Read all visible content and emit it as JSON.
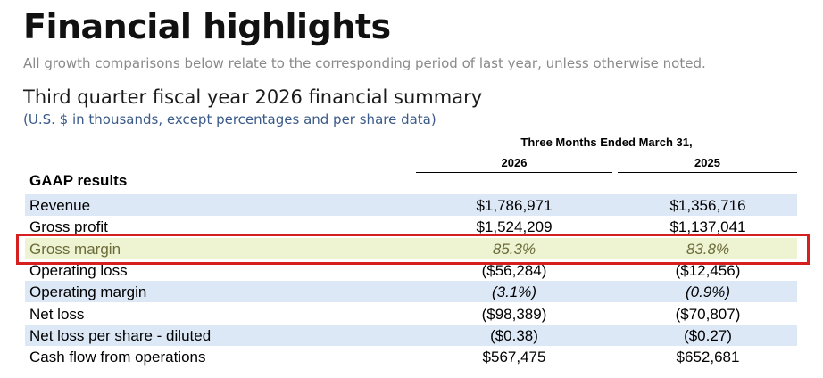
{
  "header": {
    "title": "Financial highlights",
    "subtitle": "All growth comparisons below relate to the corresponding period of last year, unless otherwise noted."
  },
  "section": {
    "title": "Third quarter fiscal year 2026 financial summary",
    "note": "(U.S. $ in thousands, except percentages and per share data)"
  },
  "table": {
    "period_header": "Three Months Ended March 31,",
    "columns": [
      "2026",
      "2025"
    ],
    "group_label": "GAAP results",
    "rows": [
      [
        "Revenue",
        "$1,786,971",
        "$1,356,716"
      ],
      [
        "Gross profit",
        "$1,524,209",
        "$1,137,041"
      ],
      [
        "Gross margin",
        "85.3%",
        "83.8%"
      ],
      [
        "Operating loss",
        "($56,284)",
        "($12,456)"
      ],
      [
        "Operating margin",
        "(3.1%)",
        "(0.9%)"
      ],
      [
        "Net loss",
        "($98,389)",
        "($70,807)"
      ],
      [
        "Net loss per share - diluted",
        "($0.38)",
        "($0.27)"
      ],
      [
        "Cash flow from operations",
        "$567,475",
        "$652,681"
      ]
    ],
    "italic_rows": [
      2,
      4
    ],
    "highlighted_row": 2
  }
}
